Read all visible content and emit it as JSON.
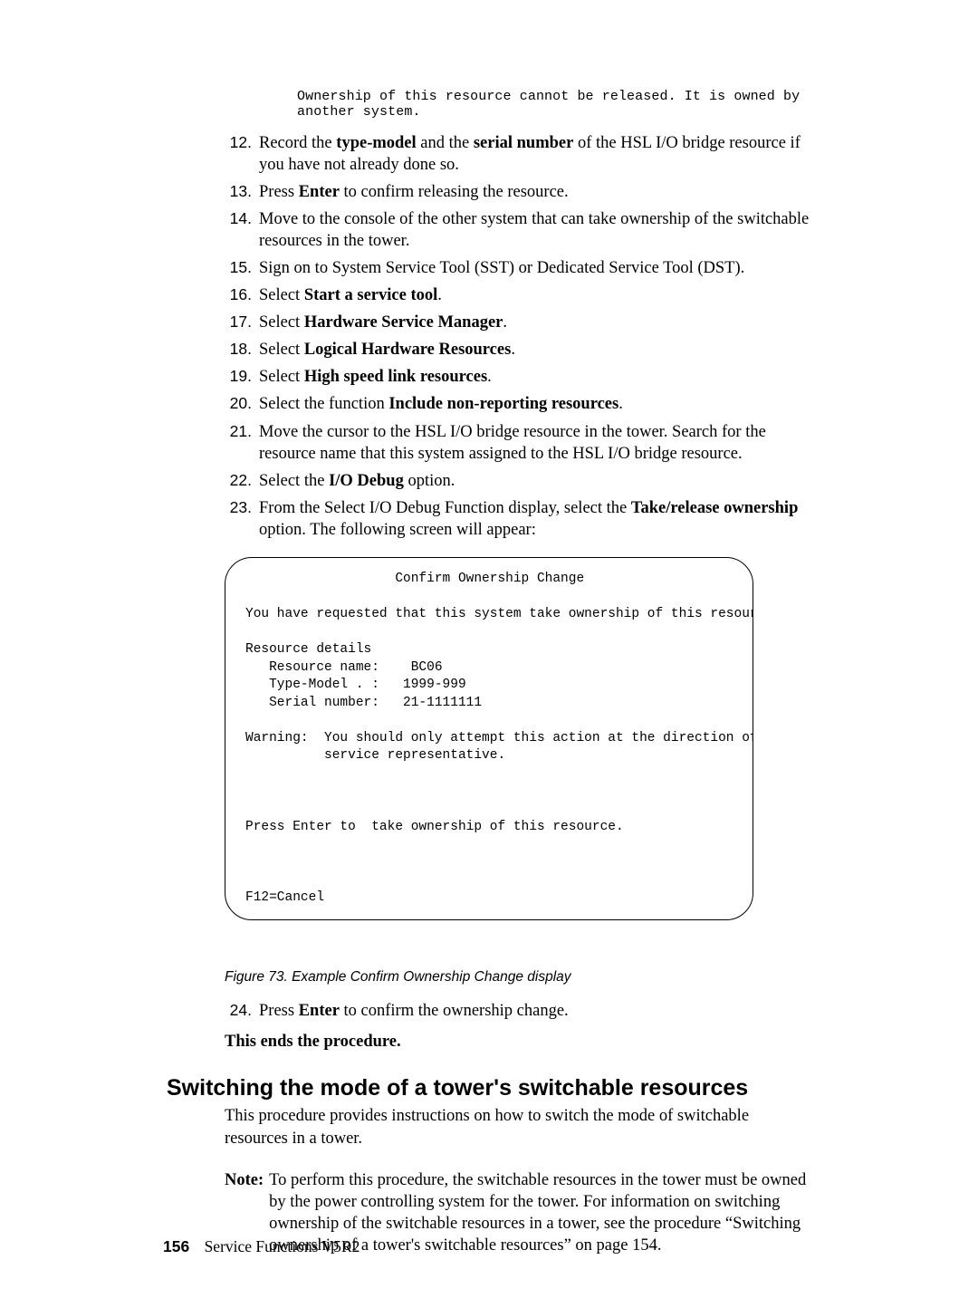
{
  "code_message_line1": "Ownership of this resource cannot be released. It is owned by",
  "code_message_line2": "another system.",
  "steps_a": [
    {
      "n": "12.",
      "pre": "Record the ",
      "b1": "type-model",
      "mid": " and the ",
      "b2": "serial number",
      "post": " of the HSL I/O bridge resource if you have not already done so."
    },
    {
      "n": "13.",
      "pre": "Press ",
      "b1": "Enter",
      "mid": " to confirm releasing the resource.",
      "b2": "",
      "post": ""
    },
    {
      "n": "14.",
      "pre": "Move to the console of the other system that can take ownership of the switchable resources in the tower.",
      "b1": "",
      "mid": "",
      "b2": "",
      "post": ""
    },
    {
      "n": "15.",
      "pre": "Sign on to System Service Tool (SST) or Dedicated Service Tool (DST).",
      "b1": "",
      "mid": "",
      "b2": "",
      "post": ""
    },
    {
      "n": "16.",
      "pre": "Select ",
      "b1": "Start a service tool",
      "mid": ".",
      "b2": "",
      "post": ""
    },
    {
      "n": "17.",
      "pre": "Select ",
      "b1": "Hardware Service Manager",
      "mid": ".",
      "b2": "",
      "post": ""
    },
    {
      "n": "18.",
      "pre": "Select ",
      "b1": "Logical Hardware Resources",
      "mid": ".",
      "b2": "",
      "post": ""
    },
    {
      "n": "19.",
      "pre": "Select ",
      "b1": "High speed link resources",
      "mid": ".",
      "b2": "",
      "post": ""
    },
    {
      "n": "20.",
      "pre": "Select the function ",
      "b1": "Include non-reporting resources",
      "mid": ".",
      "b2": "",
      "post": ""
    },
    {
      "n": "21.",
      "pre": "Move the cursor to the HSL I/O bridge resource in the tower. Search for the resource name that this system assigned to the HSL I/O bridge resource.",
      "b1": "",
      "mid": "",
      "b2": "",
      "post": ""
    },
    {
      "n": "22.",
      "pre": "Select the ",
      "b1": "I/O Debug",
      "mid": " option.",
      "b2": "",
      "post": ""
    },
    {
      "n": "23.",
      "pre": "From the Select I/O Debug Function display, select the ",
      "b1": "Take/release ownership",
      "mid": " option. The following screen will appear:",
      "b2": "",
      "post": ""
    }
  ],
  "screen": {
    "title": "                   Confirm Ownership Change",
    "line1": "You have requested that this system take ownership of this resource.",
    "line_rd": "Resource details",
    "line_rn": "   Resource name:    BC06",
    "line_tm": "   Type-Model . :   1999-999",
    "line_sn": "   Serial number:   21-1111111",
    "warn1": "Warning:  You should only attempt this action at the direction of your",
    "warn2": "          service representative.",
    "press": "Press Enter to  take ownership of this resource.",
    "f12": "F12=Cancel"
  },
  "figure_caption": "Figure 73. Example Confirm Ownership Change display",
  "steps_b": [
    {
      "n": "24.",
      "pre": "Press ",
      "b1": "Enter",
      "mid": " to confirm the ownership change.",
      "b2": "",
      "post": ""
    }
  ],
  "end_procedure": "This ends the procedure.",
  "section_heading": "Switching the mode of a tower's switchable resources",
  "section_intro": "This procedure provides instructions on how to switch the mode of switchable resources in a tower.",
  "note_label": "Note:",
  "note_text": "To perform this procedure, the switchable resources in the tower must be owned by the power controlling system for the tower. For information on switching ownership of the switchable resources in a tower, see the procedure “Switching ownership of a tower's switchable resources” on page 154.",
  "footer_page": "156",
  "footer_title": "Service Functions V5R2"
}
